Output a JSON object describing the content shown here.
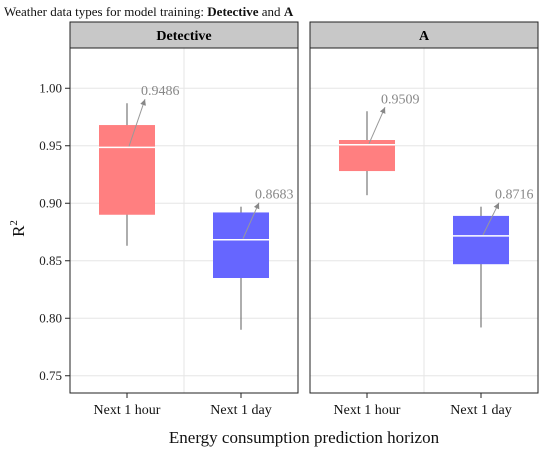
{
  "figure": {
    "title_prefix": "Weather data types for model training: ",
    "title_bold_1": "Detective",
    "title_mid": " and ",
    "title_bold_2": "A"
  },
  "chart_data": {
    "type": "box",
    "xlabel": "Energy consumption prediction horizon",
    "ylabel": "R",
    "ylabel_superscript": "2",
    "ylim": [
      0.735,
      1.035
    ],
    "yticks": [
      0.75,
      0.8,
      0.85,
      0.9,
      0.95,
      1.0
    ],
    "ytick_labels": [
      "0.75",
      "0.80",
      "0.85",
      "0.90",
      "0.95",
      "1.00"
    ],
    "categories": [
      "Next 1 hour",
      "Next 1 day"
    ],
    "colors": {
      "Next 1 hour": "#ff7f80",
      "Next 1 day": "#6666ff"
    },
    "grid": true,
    "panels": [
      {
        "name": "Detective",
        "boxes": [
          {
            "category": "Next 1 hour",
            "min": 0.863,
            "q1": 0.89,
            "median": 0.9486,
            "q3": 0.968,
            "max": 0.987,
            "median_label": "0.9486"
          },
          {
            "category": "Next 1 day",
            "min": 0.79,
            "q1": 0.835,
            "median": 0.8683,
            "q3": 0.892,
            "max": 0.897,
            "median_label": "0.8683"
          }
        ]
      },
      {
        "name": "A",
        "boxes": [
          {
            "category": "Next 1 hour",
            "min": 0.907,
            "q1": 0.928,
            "median": 0.9509,
            "q3": 0.955,
            "max": 0.98,
            "median_label": "0.9509"
          },
          {
            "category": "Next 1 day",
            "min": 0.792,
            "q1": 0.847,
            "median": 0.8716,
            "q3": 0.889,
            "max": 0.897,
            "median_label": "0.8716"
          }
        ]
      }
    ]
  }
}
